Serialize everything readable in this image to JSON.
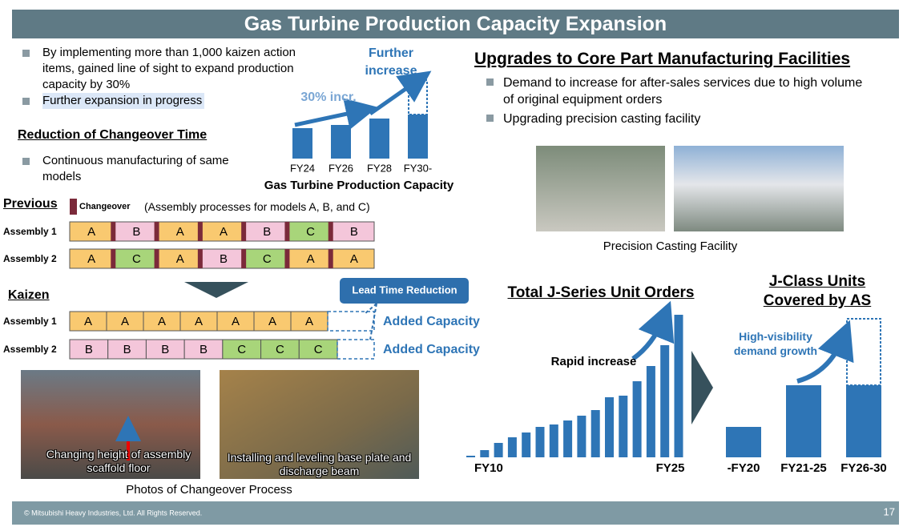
{
  "header": {
    "title": "Gas Turbine Production Capacity Expansion"
  },
  "left": {
    "bullets": [
      "By implementing more than 1,000 kaizen action items, gained line of sight to expand production capacity by 30%",
      "Further expansion in progress"
    ],
    "changeover_heading": "Reduction of Changeover Time",
    "changeover_bullet": "Continuous manufacturing of same models",
    "previous_label": "Previous",
    "changeover_legend": "Changeover",
    "processes_note": "(Assembly processes for models A, B, and C)",
    "previous_rows": [
      {
        "label": "Assembly 1",
        "cells": [
          "A",
          "B",
          "A",
          "A",
          "B",
          "C",
          "B"
        ]
      },
      {
        "label": "Assembly 2",
        "cells": [
          "A",
          "C",
          "A",
          "B",
          "C",
          "A",
          "A"
        ]
      }
    ],
    "kaizen_label": "Kaizen",
    "kaizen_rows": [
      {
        "label": "Assembly 1",
        "cells": [
          "A",
          "A",
          "A",
          "A",
          "A",
          "A",
          "A"
        ],
        "added": "Added Capacity"
      },
      {
        "label": "Assembly 2",
        "cells": [
          "B",
          "B",
          "B",
          "B",
          "C",
          "C",
          "C"
        ],
        "added": "Added Capacity"
      }
    ],
    "lead_time": "Lead Time Reduction",
    "photos": [
      {
        "caption": "Changing height of assembly scaffold floor"
      },
      {
        "caption": "Installing and leveling base plate and discharge beam"
      }
    ],
    "photos_caption": "Photos of Changeover Process"
  },
  "capacity_chart": {
    "type": "bar",
    "title": "Gas Turbine Production Capacity",
    "categories": [
      "FY24",
      "FY26",
      "FY28",
      "FY30-"
    ],
    "values": [
      38,
      42,
      50,
      55
    ],
    "further_values": [
      null,
      null,
      null,
      43
    ],
    "color": "#2e75b6",
    "annotations": [
      "30% incr.",
      "Further increase"
    ]
  },
  "right": {
    "heading": "Upgrades to Core Part Manufacturing Facilities",
    "bullets": [
      "Demand to increase for after-sales services due to high volume of original equipment orders",
      "Upgrading precision casting facility"
    ],
    "photo_caption": "Precision Casting Facility"
  },
  "orders_chart": {
    "type": "bar",
    "title": "Total J-Series Unit Orders",
    "categories": [
      "FY10",
      null,
      null,
      null,
      null,
      null,
      null,
      null,
      null,
      null,
      null,
      null,
      null,
      null,
      null,
      "FY25"
    ],
    "values": [
      2,
      9,
      18,
      25,
      31,
      38,
      41,
      46,
      52,
      59,
      75,
      77,
      95,
      114,
      140,
      178
    ],
    "color": "#2e75b6",
    "annotations": [
      "Rapid increase"
    ]
  },
  "jclass_chart": {
    "type": "bar",
    "title": "J-Class Units Covered by AS",
    "categories": [
      "-FY20",
      "FY21-25",
      "FY26-30"
    ],
    "values": [
      38,
      90,
      90
    ],
    "further_values": [
      null,
      null,
      83
    ],
    "color": "#2e75b6",
    "annotations": [
      "High-visibility demand growth"
    ]
  },
  "footer": {
    "copyright": "© Mitsubishi Heavy Industries, Ltd.  All Rights Reserved.",
    "page": "17"
  }
}
